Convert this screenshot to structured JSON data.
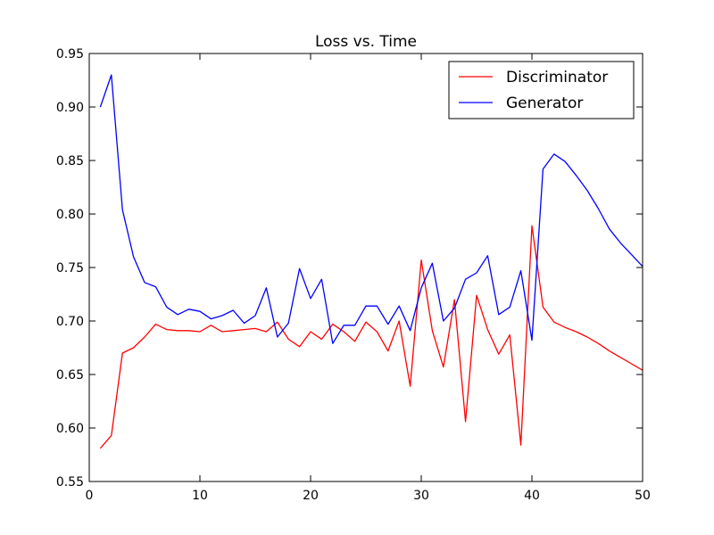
{
  "chart_data": {
    "type": "line",
    "title": "Loss vs. Time",
    "xlabel": "",
    "ylabel": "",
    "xlim": [
      0,
      50
    ],
    "ylim": [
      0.55,
      0.95
    ],
    "xticks": [
      0,
      10,
      20,
      30,
      40,
      50
    ],
    "yticks": [
      0.55,
      0.6,
      0.65,
      0.7,
      0.75,
      0.8,
      0.85,
      0.9,
      0.95
    ],
    "grid": false,
    "legend_position": "top-right",
    "x": [
      1,
      2,
      3,
      4,
      5,
      6,
      7,
      8,
      9,
      10,
      11,
      12,
      13,
      14,
      15,
      16,
      17,
      18,
      19,
      20,
      21,
      22,
      23,
      24,
      25,
      26,
      27,
      28,
      29,
      30,
      31,
      32,
      33,
      34,
      35,
      36,
      37,
      38,
      39,
      40,
      41,
      42,
      43,
      44,
      45,
      46,
      47,
      48,
      49,
      50
    ],
    "series": [
      {
        "name": "Discriminator",
        "color": "#ff0000",
        "values": [
          0.581,
          0.593,
          0.67,
          0.675,
          0.685,
          0.697,
          0.692,
          0.691,
          0.691,
          0.69,
          0.696,
          0.69,
          0.691,
          0.692,
          0.693,
          0.69,
          0.699,
          0.683,
          0.676,
          0.69,
          0.683,
          0.697,
          0.69,
          0.681,
          0.699,
          0.69,
          0.672,
          0.7,
          0.639,
          0.757,
          0.691,
          0.657,
          0.72,
          0.606,
          0.724,
          0.692,
          0.669,
          0.687,
          0.584,
          0.789,
          0.713,
          0.699,
          0.694,
          0.69,
          0.685,
          0.679,
          0.672,
          0.666,
          0.66,
          0.654
        ]
      },
      {
        "name": "Generator",
        "color": "#0000ff",
        "values": [
          0.9,
          0.93,
          0.804,
          0.76,
          0.736,
          0.732,
          0.713,
          0.706,
          0.711,
          0.709,
          0.702,
          0.705,
          0.71,
          0.698,
          0.705,
          0.731,
          0.685,
          0.698,
          0.749,
          0.721,
          0.739,
          0.679,
          0.696,
          0.696,
          0.714,
          0.714,
          0.697,
          0.714,
          0.691,
          0.731,
          0.754,
          0.7,
          0.712,
          0.739,
          0.745,
          0.761,
          0.706,
          0.713,
          0.747,
          0.682,
          0.842,
          0.856,
          0.849,
          0.836,
          0.822,
          0.805,
          0.786,
          0.773,
          0.762,
          0.751
        ]
      }
    ]
  }
}
